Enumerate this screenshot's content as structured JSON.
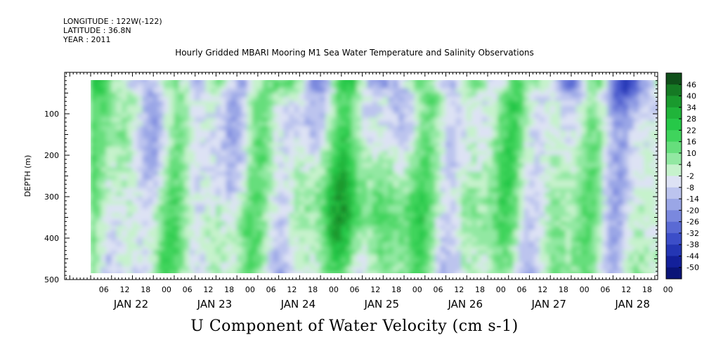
{
  "header": {
    "longitude": "LONGITUDE : 122W(-122)",
    "latitude": "LATITUDE : 36.8N",
    "year": "YEAR : 2011"
  },
  "title": "Hourly Gridded MBARI Mooring M1 Sea Water Temperature and Salinity Observations",
  "bottom_title": "U Component of Water Velocity (cm s-1)",
  "chart_data": {
    "type": "heatmap",
    "title": "Hourly Gridded MBARI Mooring M1 Sea Water Temperature and Salinity Observations",
    "subtitle": "U Component of Water Velocity (cm s-1)",
    "xlabel": "",
    "ylabel": "DEPTH (m)",
    "ylim": [
      500,
      0
    ],
    "y_ticks": [
      100,
      200,
      300,
      400,
      500
    ],
    "x_hour_ticks": [
      "06",
      "12",
      "18",
      "00",
      "06",
      "12",
      "18",
      "00",
      "06",
      "12",
      "18",
      "00",
      "06",
      "12",
      "18",
      "00",
      "06",
      "12",
      "18",
      "00",
      "06",
      "12",
      "18",
      "00",
      "06",
      "12",
      "18",
      "00"
    ],
    "x_day_labels": [
      "JAN 22",
      "JAN 23",
      "JAN 24",
      "JAN 25",
      "JAN 26",
      "JAN 27",
      "JAN 28"
    ],
    "colorbar_ticks": [
      46,
      40,
      34,
      28,
      22,
      16,
      10,
      4,
      -2,
      -8,
      -14,
      -20,
      -26,
      -32,
      -38,
      -44,
      -50
    ],
    "colorbar_colors": [
      "#0f4f1a",
      "#157a24",
      "#1a9a2e",
      "#20b43a",
      "#26c848",
      "#3fd45c",
      "#66de7c",
      "#92e8a2",
      "#c6f2cc",
      "#dde2f4",
      "#bcc4ee",
      "#9aa6e6",
      "#7a88de",
      "#5a6ad4",
      "#3c4ec8",
      "#2436b4",
      "#13209a",
      "#0a1478"
    ],
    "data_range": [
      -50,
      46
    ],
    "depth_range_data": [
      20,
      490
    ],
    "time_range_hours": [
      0,
      168
    ],
    "pattern": "Vertical alternating bands of weak eastward (green) and westward (blue) flow over Jan 22-28, 2011; strongest positive values (up to ~30 cm/s) in mid-depth around Jan 24 18h to Jan 25 18h; strongest negative values near surface around Jan 28 06h."
  }
}
